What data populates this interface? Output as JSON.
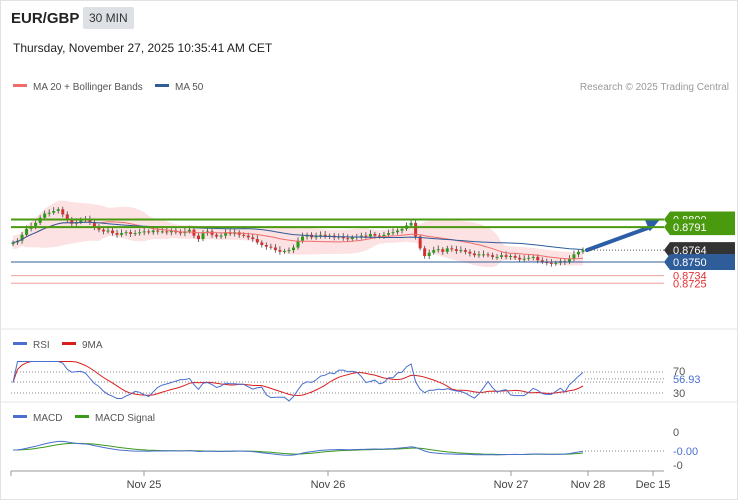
{
  "header": {
    "symbol": "EUR/GBP",
    "timeframe": "30 MIN",
    "datetime": "Thursday, November 27, 2025 10:35:41 AM CET"
  },
  "legend": {
    "ma20_label": "MA 20 + Bollinger Bands",
    "ma50_label": "MA 50",
    "credit": "Research © 2025 Trading Central",
    "ma20_color": "#f06b6b",
    "ma50_color": "#2f5d9a"
  },
  "rsi_legend": {
    "rsi_label": "RSI",
    "ma_label": "9MA",
    "rsi_color": "#4a6fd0",
    "ma_color": "#d91e1e"
  },
  "macd_legend": {
    "macd_label": "MACD",
    "signal_label": "MACD Signal",
    "macd_color": "#4a6fd0",
    "signal_color": "#3a9a1a"
  },
  "chart_data": [
    {
      "type": "candlestick",
      "price_range": [
        0.872,
        0.883
      ],
      "x_labels": [
        "Nov 25",
        "Nov 26",
        "Nov 27",
        "Nov 28",
        "Dec 15"
      ],
      "close": [
        0.8773,
        0.8775,
        0.8782,
        0.8789,
        0.8792,
        0.8796,
        0.8802,
        0.8807,
        0.8808,
        0.881,
        0.8812,
        0.8806,
        0.8799,
        0.8795,
        0.8797,
        0.88,
        0.8801,
        0.8797,
        0.879,
        0.8788,
        0.8786,
        0.8787,
        0.8784,
        0.8782,
        0.8784,
        0.8785,
        0.8783,
        0.8784,
        0.8785,
        0.8786,
        0.8785,
        0.8787,
        0.8786,
        0.8786,
        0.8785,
        0.8787,
        0.8785,
        0.8784,
        0.8786,
        0.8788,
        0.8781,
        0.8777,
        0.8784,
        0.8786,
        0.8782,
        0.878,
        0.8781,
        0.8785,
        0.8783,
        0.8785,
        0.8782,
        0.8781,
        0.8779,
        0.8777,
        0.8773,
        0.877,
        0.8768,
        0.8767,
        0.8764,
        0.8762,
        0.8763,
        0.8764,
        0.8767,
        0.8775,
        0.878,
        0.8782,
        0.8779,
        0.8781,
        0.8782,
        0.878,
        0.8781,
        0.8779,
        0.878,
        0.8778,
        0.8777,
        0.8779,
        0.878,
        0.8781,
        0.878,
        0.8783,
        0.8781,
        0.878,
        0.8782,
        0.8784,
        0.8785,
        0.8787,
        0.8789,
        0.8793,
        0.8796,
        0.878,
        0.8766,
        0.8757,
        0.8761,
        0.8764,
        0.8765,
        0.8762,
        0.8766,
        0.8765,
        0.8763,
        0.8764,
        0.8762,
        0.876,
        0.8758,
        0.8759,
        0.8759,
        0.8758,
        0.8756,
        0.8756,
        0.8758,
        0.8756,
        0.8757,
        0.8755,
        0.8753,
        0.8754,
        0.8755,
        0.8756,
        0.8752,
        0.875,
        0.8749,
        0.8748,
        0.8749,
        0.8751,
        0.875,
        0.8754,
        0.8759,
        0.8762,
        0.8764
      ],
      "series": [
        {
          "name": "MA 20",
          "color": "#f06b6b"
        },
        {
          "name": "MA 50",
          "color": "#2f5d9a"
        }
      ],
      "levels": [
        {
          "value": "0.8800",
          "kind": "resistance",
          "color": "#4a9a10"
        },
        {
          "value": "0.8791",
          "kind": "resistance",
          "color": "#4a9a10"
        },
        {
          "value": "0.8764",
          "kind": "last",
          "color": "#333333"
        },
        {
          "value": "0.8750",
          "kind": "pivot",
          "color": "#2f5d9a"
        },
        {
          "value": "0.8734",
          "kind": "support",
          "color": "#e03030"
        },
        {
          "value": "0.8725",
          "kind": "support",
          "color": "#e03030"
        }
      ],
      "arrow_target": 0.88
    },
    {
      "type": "line",
      "title": "RSI",
      "yticks": [
        "70",
        "30"
      ],
      "last_value": "56.93"
    },
    {
      "type": "line",
      "title": "MACD",
      "yticks": [
        "0",
        "-0"
      ],
      "last_value": "-0.00"
    }
  ]
}
